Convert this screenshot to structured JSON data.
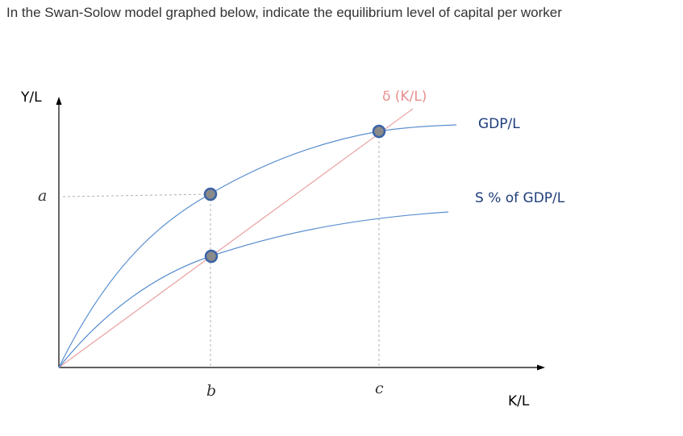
{
  "question": {
    "text": "In the Swan-Solow model graphed below, indicate the equilibrium level of capital per worker"
  },
  "diagram": {
    "y_axis_label": "Y/L",
    "x_axis_label": "K/L",
    "y_marker_label": "a",
    "x_marker_labels": [
      "b",
      "c"
    ],
    "curves": {
      "gdp": {
        "label": "GDP/L",
        "color": "#5b8fd0"
      },
      "savings": {
        "label": "S % of GDP/L",
        "color": "#5b8fd0"
      },
      "depreciation": {
        "label": "δ (K/L)",
        "color": "#e8a0a0"
      }
    },
    "colors": {
      "axis": "#000000",
      "label_blue": "#1f3d7a",
      "label_red": "#e8908f",
      "dot_fill": "#8a8a8a",
      "dot_stroke": "#3a62a8",
      "dashed": "#b0b0b0"
    },
    "points": [
      "gdp-at-b",
      "savings-at-b",
      "gdp-at-c"
    ]
  }
}
